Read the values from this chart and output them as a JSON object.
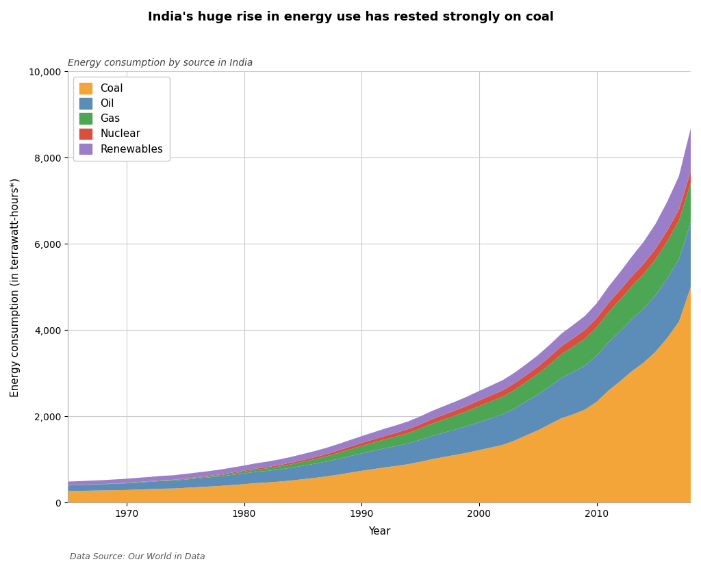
{
  "title": "India's huge rise in energy use has rested strongly on coal",
  "subtitle": "Energy consumption by source in India",
  "source": "Data Source: Our World in Data",
  "xlabel": "Year",
  "ylabel": "Energy consumption (in terrawatt-hours*)",
  "ylim": [
    0,
    10000
  ],
  "yticks": [
    0,
    2000,
    4000,
    6000,
    8000,
    10000
  ],
  "colors": {
    "Coal": "#F4A53A",
    "Oil": "#5B8DB8",
    "Gas": "#4CA654",
    "Nuclear": "#D94F3D",
    "Renewables": "#9B7EC8"
  },
  "legend_order": [
    "Coal",
    "Oil",
    "Gas",
    "Nuclear",
    "Renewables"
  ],
  "years": [
    1965,
    1966,
    1967,
    1968,
    1969,
    1970,
    1971,
    1972,
    1973,
    1974,
    1975,
    1976,
    1977,
    1978,
    1979,
    1980,
    1981,
    1982,
    1983,
    1984,
    1985,
    1986,
    1987,
    1988,
    1989,
    1990,
    1991,
    1992,
    1993,
    1994,
    1995,
    1996,
    1997,
    1998,
    1999,
    2000,
    2001,
    2002,
    2003,
    2004,
    2005,
    2006,
    2007,
    2008,
    2009,
    2010,
    2011,
    2012,
    2013,
    2014,
    2015,
    2016,
    2017,
    2018
  ],
  "Coal": [
    270,
    275,
    280,
    285,
    290,
    295,
    305,
    315,
    325,
    330,
    345,
    360,
    375,
    390,
    410,
    430,
    455,
    470,
    490,
    515,
    545,
    575,
    610,
    650,
    695,
    740,
    780,
    820,
    855,
    895,
    950,
    1010,
    1060,
    1110,
    1160,
    1220,
    1280,
    1340,
    1440,
    1560,
    1680,
    1820,
    1960,
    2050,
    2160,
    2340,
    2600,
    2820,
    3050,
    3250,
    3500,
    3820,
    4200,
    5000
  ],
  "Oil": [
    130,
    133,
    137,
    142,
    148,
    155,
    163,
    170,
    178,
    183,
    192,
    202,
    212,
    222,
    235,
    248,
    260,
    270,
    282,
    295,
    312,
    328,
    345,
    365,
    385,
    405,
    425,
    445,
    462,
    483,
    510,
    540,
    565,
    590,
    618,
    648,
    678,
    710,
    745,
    785,
    828,
    878,
    935,
    980,
    1020,
    1070,
    1120,
    1160,
    1205,
    1255,
    1310,
    1380,
    1450,
    1500
  ],
  "Gas": [
    5,
    5,
    6,
    6,
    7,
    8,
    9,
    10,
    12,
    14,
    16,
    19,
    22,
    28,
    35,
    42,
    50,
    58,
    68,
    80,
    92,
    105,
    120,
    138,
    155,
    172,
    188,
    205,
    222,
    240,
    260,
    282,
    305,
    325,
    348,
    372,
    390,
    408,
    428,
    452,
    478,
    508,
    548,
    590,
    625,
    658,
    695,
    730,
    765,
    800,
    830,
    860,
    890,
    920
  ],
  "Nuclear": [
    0,
    0,
    0,
    0,
    2,
    3,
    4,
    5,
    6,
    7,
    9,
    11,
    13,
    16,
    19,
    22,
    26,
    30,
    34,
    38,
    42,
    47,
    52,
    57,
    62,
    68,
    74,
    80,
    86,
    92,
    98,
    105,
    112,
    118,
    125,
    132,
    140,
    148,
    155,
    162,
    170,
    178,
    186,
    194,
    202,
    210,
    218,
    225,
    232,
    238,
    244,
    250,
    256,
    262
  ],
  "Renewables": [
    85,
    87,
    89,
    91,
    93,
    95,
    97,
    99,
    101,
    103,
    106,
    108,
    111,
    114,
    117,
    120,
    123,
    126,
    130,
    134,
    138,
    142,
    146,
    150,
    155,
    160,
    165,
    170,
    175,
    180,
    186,
    192,
    198,
    205,
    212,
    220,
    228,
    236,
    244,
    254,
    265,
    278,
    292,
    308,
    325,
    345,
    375,
    415,
    460,
    510,
    580,
    670,
    780,
    1000
  ],
  "background_color": "#FFFFFF",
  "grid_color": "#CCCCCC",
  "title_fontsize": 13,
  "subtitle_fontsize": 10,
  "axis_label_fontsize": 11,
  "tick_fontsize": 10,
  "legend_fontsize": 11,
  "source_fontsize": 9
}
